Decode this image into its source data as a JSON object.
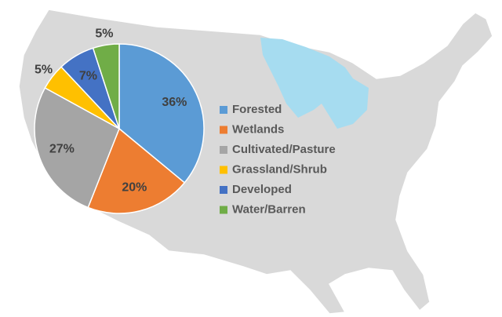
{
  "chart_data": {
    "type": "pie",
    "categories": [
      "Forested",
      "Wetlands",
      "Cultivated/Pasture",
      "Grassland/Shrub",
      "Developed",
      "Water/Barren"
    ],
    "values": [
      36,
      20,
      27,
      5,
      7,
      5
    ],
    "value_labels": [
      "36%",
      "20%",
      "27%",
      "5%",
      "7%",
      "5%"
    ],
    "colors": [
      "#5b9bd5",
      "#ed7d31",
      "#a5a5a5",
      "#ffc000",
      "#4472c4",
      "#70ad47"
    ],
    "legend": "right"
  }
}
